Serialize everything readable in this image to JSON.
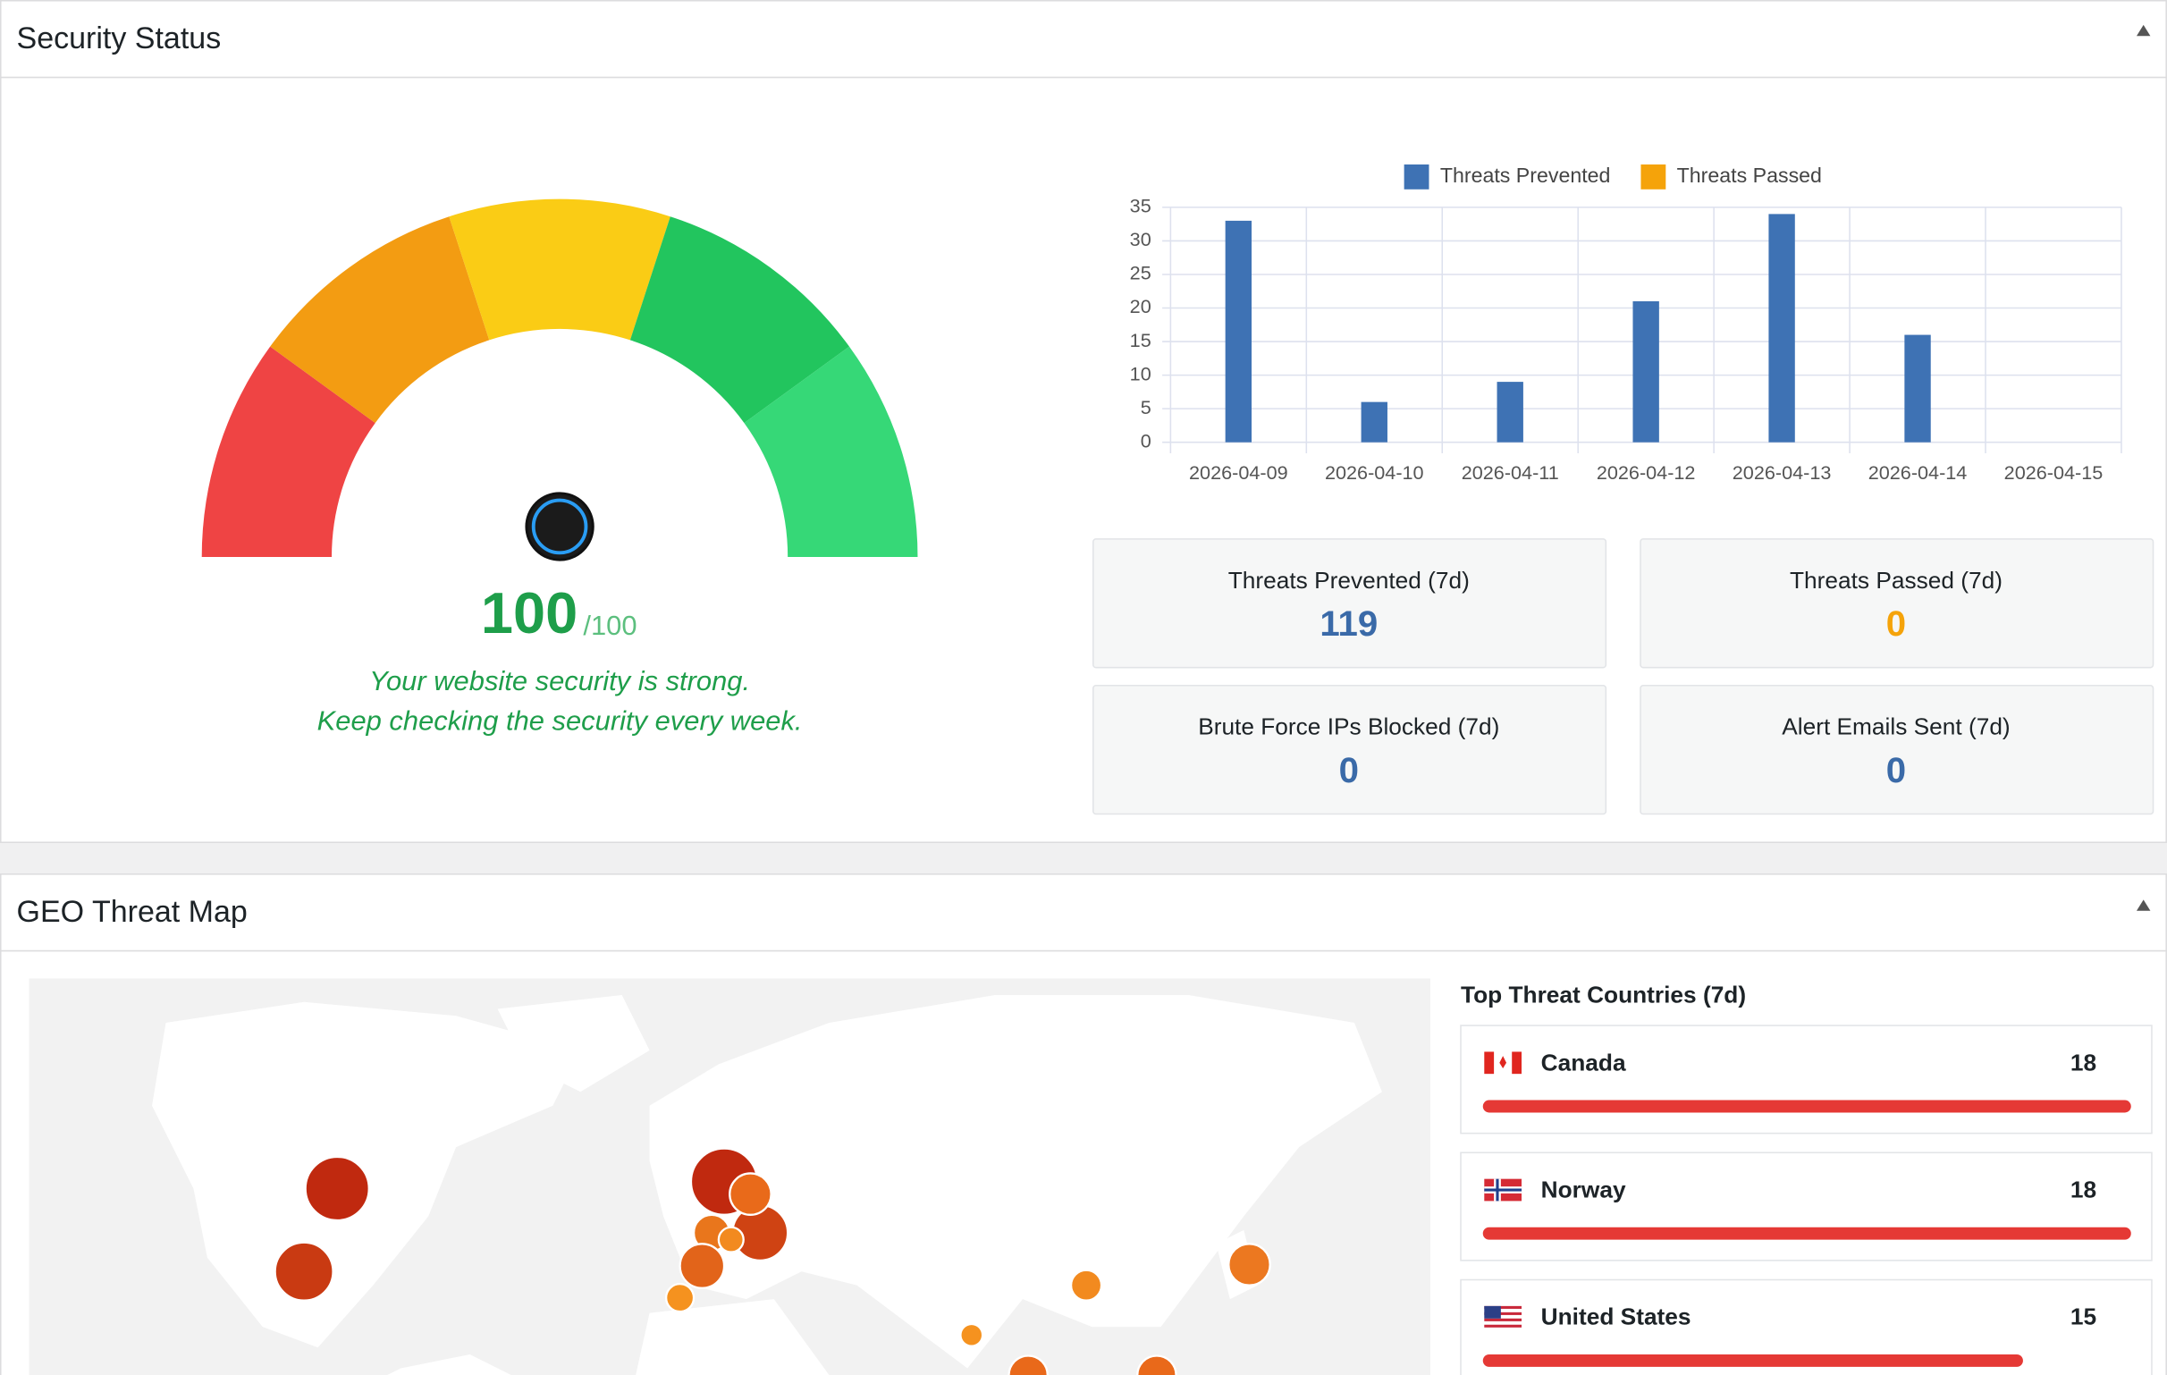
{
  "security_status": {
    "title": "Security Status",
    "score": 100,
    "score_max": {
      "value": 100,
      "label": "/100"
    },
    "message": [
      "Your website security is strong.",
      "Keep checking the security every week."
    ]
  },
  "chart_data": {
    "type": "bar",
    "categories": [
      "2026-04-09",
      "2026-04-10",
      "2026-04-11",
      "2026-04-12",
      "2026-04-13",
      "2026-04-14",
      "2026-04-15"
    ],
    "series": [
      {
        "name": "Threats Prevented",
        "color": "#3e72b4",
        "values": [
          33,
          6,
          9,
          21,
          34,
          16,
          0
        ]
      },
      {
        "name": "Threats Passed",
        "color": "#f5a30a",
        "values": [
          0,
          0,
          0,
          0,
          0,
          0,
          0
        ]
      }
    ],
    "ylim": [
      0,
      35
    ],
    "yticks": [
      0,
      5,
      10,
      15,
      20,
      25,
      30,
      35
    ],
    "grid": true,
    "legend": "top"
  },
  "stats": [
    {
      "label": "Threats Prevented (7d)",
      "value": 119,
      "color": "#3a6aa8"
    },
    {
      "label": "Threats Passed (7d)",
      "value": 0,
      "color": "#f5a30a"
    },
    {
      "label": "Brute Force IPs Blocked (7d)",
      "value": 0,
      "color": "#3a6aa8"
    },
    {
      "label": "Alert Emails Sent (7d)",
      "value": 0,
      "color": "#3a6aa8"
    }
  ],
  "geo_map": {
    "title": "GEO Threat Map",
    "list_title": "Top Threat Countries (7d)",
    "countries": [
      {
        "name": "Canada",
        "count": 18
      },
      {
        "name": "Norway",
        "count": 18
      },
      {
        "name": "United States",
        "count": 15
      }
    ]
  }
}
